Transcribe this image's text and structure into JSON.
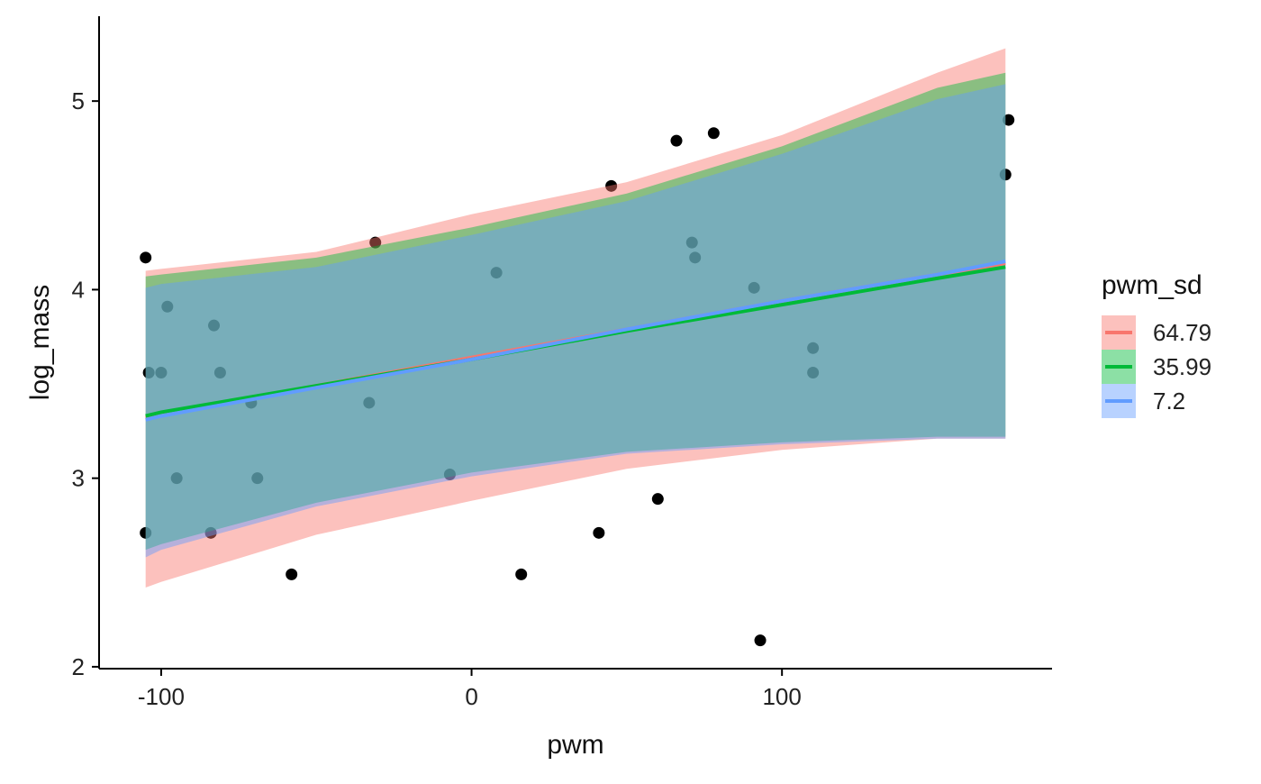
{
  "chart_data": {
    "type": "line",
    "title": "",
    "xlabel": "pwm",
    "ylabel": "log_mass",
    "xlim": [
      -120,
      187
    ],
    "ylim": [
      1.99,
      5.45
    ],
    "x_ticks": [
      -100,
      0,
      100
    ],
    "x_tick_labels": [
      "-100",
      "0",
      "100"
    ],
    "y_ticks": [
      2,
      3,
      4,
      5
    ],
    "y_tick_labels": [
      "2",
      "3",
      "4",
      "5"
    ],
    "grid": false,
    "legend": {
      "title": "pwm_sd",
      "placement": "right",
      "entries": [
        "64.79",
        "35.99",
        "7.2"
      ]
    },
    "series": [
      {
        "name": "64.79",
        "color": "#f8766d",
        "x": [
          -105,
          -100,
          -50,
          0,
          50,
          100,
          150,
          172
        ],
        "fit": [
          3.32,
          3.34,
          3.49,
          3.64,
          3.79,
          3.94,
          4.08,
          4.14
        ],
        "upper": [
          4.1,
          4.11,
          4.2,
          4.4,
          4.57,
          4.82,
          5.15,
          5.28
        ],
        "lower": [
          2.42,
          2.45,
          2.7,
          2.88,
          3.05,
          3.15,
          3.21,
          3.21
        ]
      },
      {
        "name": "35.99",
        "color": "#00ba38",
        "x": [
          -105,
          -100,
          -50,
          0,
          50,
          100,
          150,
          172
        ],
        "fit": [
          3.33,
          3.35,
          3.49,
          3.63,
          3.78,
          3.92,
          4.06,
          4.12
        ],
        "upper": [
          4.07,
          4.08,
          4.17,
          4.33,
          4.51,
          4.76,
          5.07,
          5.15
        ],
        "lower": [
          2.62,
          2.65,
          2.87,
          3.03,
          3.14,
          3.19,
          3.22,
          3.22
        ]
      },
      {
        "name": "7.2",
        "color": "#619cff",
        "x": [
          -105,
          -100,
          -50,
          0,
          50,
          100,
          150,
          172
        ],
        "fit": [
          3.31,
          3.33,
          3.48,
          3.63,
          3.79,
          3.94,
          4.08,
          4.15
        ],
        "upper": [
          4.01,
          4.03,
          4.12,
          4.29,
          4.47,
          4.72,
          5.01,
          5.09
        ],
        "lower": [
          2.58,
          2.62,
          2.85,
          3.01,
          3.13,
          3.18,
          3.21,
          3.21
        ]
      }
    ],
    "points": [
      {
        "x": -105,
        "y": 4.17
      },
      {
        "x": -104,
        "y": 3.56
      },
      {
        "x": -105,
        "y": 2.71
      },
      {
        "x": -100,
        "y": 3.56
      },
      {
        "x": -98,
        "y": 3.91
      },
      {
        "x": -95,
        "y": 3.0
      },
      {
        "x": -84,
        "y": 2.71
      },
      {
        "x": -83,
        "y": 3.81
      },
      {
        "x": -81,
        "y": 3.56
      },
      {
        "x": -71,
        "y": 3.4
      },
      {
        "x": -69,
        "y": 3.0
      },
      {
        "x": -58,
        "y": 2.49
      },
      {
        "x": -33,
        "y": 3.4
      },
      {
        "x": -31,
        "y": 4.25
      },
      {
        "x": -7,
        "y": 3.02
      },
      {
        "x": 8,
        "y": 4.09
      },
      {
        "x": 16,
        "y": 2.49
      },
      {
        "x": 41,
        "y": 2.71
      },
      {
        "x": 45,
        "y": 4.55
      },
      {
        "x": 60,
        "y": 2.89
      },
      {
        "x": 66,
        "y": 4.79
      },
      {
        "x": 71,
        "y": 4.25
      },
      {
        "x": 72,
        "y": 4.17
      },
      {
        "x": 78,
        "y": 4.83
      },
      {
        "x": 91,
        "y": 4.01
      },
      {
        "x": 93,
        "y": 2.14
      },
      {
        "x": 110,
        "y": 3.69
      },
      {
        "x": 110,
        "y": 3.56
      },
      {
        "x": 172,
        "y": 4.61
      },
      {
        "x": 173,
        "y": 4.9
      }
    ]
  }
}
